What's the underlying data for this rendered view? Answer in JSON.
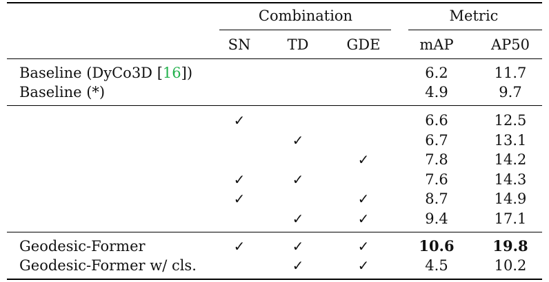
{
  "header": {
    "group_combination": "Combination",
    "group_metric": "Metric",
    "columns": [
      "SN",
      "TD",
      "GDE",
      "mAP",
      "AP50"
    ]
  },
  "check_mark": "✓",
  "baselines": [
    {
      "label_prefix": "Baseline (DyCo3D [",
      "ref": "16",
      "label_suffix": "])",
      "map": "6.2",
      "ap50": "11.7"
    },
    {
      "label": "Baseline (*)",
      "map": "4.9",
      "ap50": "9.7"
    }
  ],
  "ablations": [
    {
      "sn": true,
      "td": false,
      "gde": false,
      "map": "6.6",
      "ap50": "12.5"
    },
    {
      "sn": false,
      "td": true,
      "gde": false,
      "map": "6.7",
      "ap50": "13.1"
    },
    {
      "sn": false,
      "td": false,
      "gde": true,
      "map": "7.8",
      "ap50": "14.2"
    },
    {
      "sn": true,
      "td": true,
      "gde": false,
      "map": "7.6",
      "ap50": "14.3"
    },
    {
      "sn": true,
      "td": false,
      "gde": true,
      "map": "8.7",
      "ap50": "14.9"
    },
    {
      "sn": false,
      "td": true,
      "gde": true,
      "map": "9.4",
      "ap50": "17.1"
    }
  ],
  "final": [
    {
      "label": "Geodesic-Former",
      "sn": true,
      "td": true,
      "gde": true,
      "map": "10.6",
      "ap50": "19.8",
      "bold": true
    },
    {
      "label": "Geodesic-Former w/ cls.",
      "sn": false,
      "td": true,
      "gde": true,
      "map": "4.5",
      "ap50": "10.2",
      "bold": false
    }
  ]
}
